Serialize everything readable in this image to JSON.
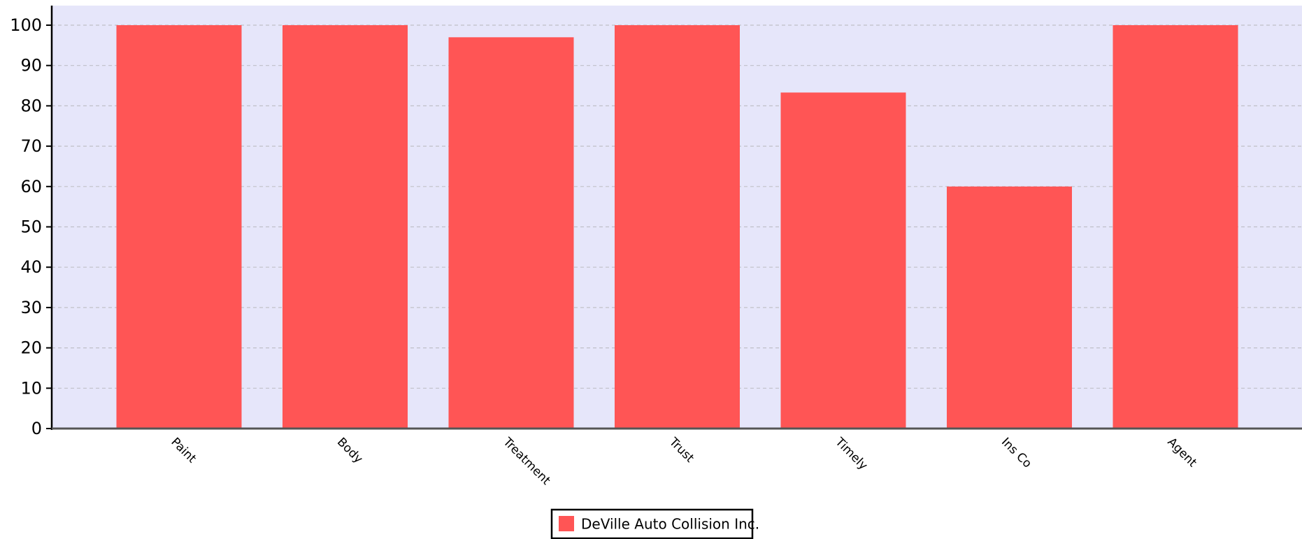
{
  "chart_data": {
    "type": "bar",
    "categories": [
      "Paint",
      "Body",
      "Treatment",
      "Trust",
      "Timely",
      "Ins Co",
      "Agent"
    ],
    "series": [
      {
        "name": "DeVille Auto Collision Inc.",
        "values": [
          100,
          100,
          97,
          100,
          83.3,
          60,
          100
        ],
        "color": "#ff5555"
      }
    ],
    "title": "",
    "xlabel": "",
    "ylabel": "",
    "ylim": [
      0,
      105
    ],
    "yticks": [
      0,
      10,
      20,
      30,
      40,
      50,
      60,
      70,
      80,
      90,
      100
    ],
    "grid": true,
    "legend_position": "bottom-center",
    "colors": {
      "plot_background": "#e6e6fa",
      "grid": "#c0c0c8",
      "axis": "#000000"
    }
  }
}
